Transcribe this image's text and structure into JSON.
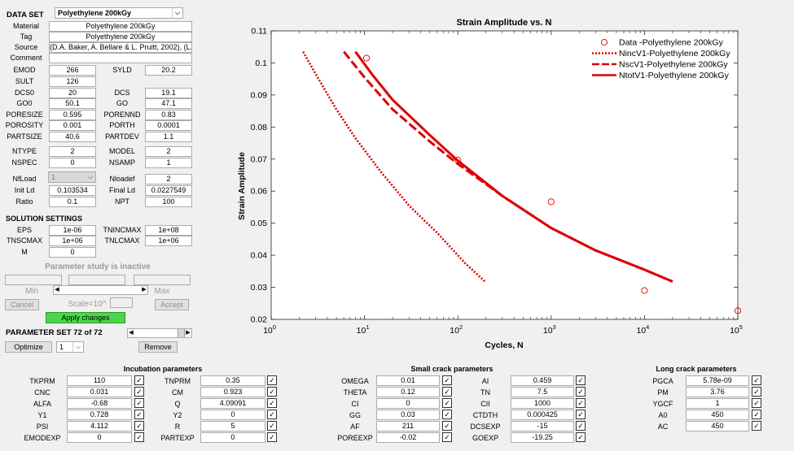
{
  "dataset": {
    "label": "DATA SET",
    "selected": "Polyethylene 200kGy",
    "material_label": "Material",
    "material": "Polyethylene 200kGy",
    "tag_label": "Tag",
    "tag": "Polyethylene 200kGy",
    "source_label": "Source",
    "source": "(D.A. Baker, A. Bellare & L. Pruitt, 2002), (L.",
    "comment_label": "Comment",
    "comment": ""
  },
  "props_left": [
    {
      "label": "EMOD",
      "value": "266"
    },
    {
      "label": "SULT",
      "value": "126"
    },
    {
      "label": "DCS0",
      "value": "20"
    },
    {
      "label": "GO0",
      "value": "50.1"
    },
    {
      "label": "PORESIZE",
      "value": "0.595"
    },
    {
      "label": "POROSITY",
      "value": "0.001"
    },
    {
      "label": "PARTSIZE",
      "value": "40.6"
    }
  ],
  "props_right": [
    {
      "label": "SYLD",
      "value": "20.2"
    },
    {
      "label": "DCS",
      "value": "19.1"
    },
    {
      "label": "GO",
      "value": "47.1"
    },
    {
      "label": "PORENND",
      "value": "0.83"
    },
    {
      "label": "PORTH",
      "value": "0.0001"
    },
    {
      "label": "PARTDEV",
      "value": "1.1"
    }
  ],
  "types": {
    "ntype_label": "NTYPE",
    "ntype": "2",
    "model_label": "MODEL",
    "model": "2",
    "nspec_label": "NSPEC",
    "nspec": "0",
    "nsamp_label": "NSAMP",
    "nsamp": "1"
  },
  "load": {
    "nfload_label": "NfLoad",
    "nfload": "1",
    "nloadef_label": "Nloadef",
    "nloadef": "2",
    "initld_label": "Init Ld",
    "initld": "0.103534",
    "finalld_label": "Final Ld",
    "finalld": "0.0227549",
    "ratio_label": "Ratio",
    "ratio": "0.1",
    "npt_label": "NPT",
    "npt": "100"
  },
  "solution": {
    "title": "SOLUTION SETTINGS",
    "eps_label": "EPS",
    "eps": "1e-06",
    "tnincmax_label": "TNINCMAX",
    "tnincmax": "1e+08",
    "tnscmax_label": "TNSCMAX",
    "tnscmax": "1e+06",
    "tnlcmax_label": "TNLCMAX",
    "tnlcmax": "1e+06",
    "m_label": "M",
    "m": "0"
  },
  "param_study": {
    "status": "Parameter study is inactive",
    "min_label": "Min",
    "max_label": "Max",
    "cancel": "Cancel",
    "scale": "Scale=10^",
    "accept": "Accept",
    "apply": "Apply changes"
  },
  "param_set": {
    "label": "PARAMETER SET 72 of 72",
    "optimize": "Optimize",
    "opt_value": "1",
    "remove": "Remove"
  },
  "incubation": {
    "title": "Incubation parameters",
    "left": [
      {
        "label": "TKPRM",
        "value": "110",
        "checked": true
      },
      {
        "label": "CNC",
        "value": "0.031",
        "checked": true
      },
      {
        "label": "ALFA",
        "value": "-0.68",
        "checked": true
      },
      {
        "label": "Y1",
        "value": "0.728",
        "checked": true
      },
      {
        "label": "PSI",
        "value": "4.112",
        "checked": true
      },
      {
        "label": "EMODEXP",
        "value": "0",
        "checked": true
      }
    ],
    "right": [
      {
        "label": "TNPRM",
        "value": "0.35",
        "checked": true
      },
      {
        "label": "CM",
        "value": "0.923",
        "checked": true
      },
      {
        "label": "Q",
        "value": "4.09091",
        "checked": true
      },
      {
        "label": "Y2",
        "value": "0",
        "checked": true
      },
      {
        "label": "R",
        "value": "5",
        "checked": true
      },
      {
        "label": "PARTEXP",
        "value": "0",
        "checked": true
      }
    ]
  },
  "small_crack": {
    "title": "Small crack parameters",
    "left": [
      {
        "label": "OMEGA",
        "value": "0.01",
        "checked": true
      },
      {
        "label": "THETA",
        "value": "0.12",
        "checked": true
      },
      {
        "label": "CI",
        "value": "0",
        "checked": true
      },
      {
        "label": "GG",
        "value": "0.03",
        "checked": true
      },
      {
        "label": "AF",
        "value": "211",
        "checked": true
      },
      {
        "label": "POREEXP",
        "value": "-0.02",
        "checked": true
      }
    ],
    "right": [
      {
        "label": "AI",
        "value": "0.459",
        "checked": true
      },
      {
        "label": "TN",
        "value": "7.5",
        "checked": true
      },
      {
        "label": "CII",
        "value": "1000",
        "checked": true
      },
      {
        "label": "CTDTH",
        "value": "0.000425",
        "checked": true
      },
      {
        "label": "DCSEXP",
        "value": "-15",
        "checked": true
      },
      {
        "label": "GOEXP",
        "value": "-19.25",
        "checked": true
      }
    ]
  },
  "long_crack": {
    "title": "Long crack parameters",
    "items": [
      {
        "label": "PGCA",
        "value": "5.78e-09",
        "checked": true
      },
      {
        "label": "PM",
        "value": "3.76",
        "checked": true
      },
      {
        "label": "YGCF",
        "value": "1",
        "checked": true
      },
      {
        "label": "A0",
        "value": "450",
        "checked": true
      },
      {
        "label": "AC",
        "value": "450",
        "checked": true
      }
    ]
  },
  "chart_data": {
    "type": "line",
    "title": "Strain Amplitude vs. N",
    "xlabel": "Cycles, N",
    "ylabel": "Strain Amplitude",
    "xscale": "log",
    "xlim": [
      1,
      100000
    ],
    "ylim": [
      0.02,
      0.11
    ],
    "xticks": [
      1,
      10,
      100,
      1000,
      10000,
      100000
    ],
    "xtick_labels": [
      {
        "base": "10",
        "exp": "0"
      },
      {
        "base": "10",
        "exp": "1"
      },
      {
        "base": "10",
        "exp": "2"
      },
      {
        "base": "10",
        "exp": "3"
      },
      {
        "base": "10",
        "exp": "4"
      },
      {
        "base": "10",
        "exp": "5"
      }
    ],
    "yticks": [
      0.02,
      0.03,
      0.04,
      0.05,
      0.06,
      0.07,
      0.08,
      0.09,
      0.1,
      0.11
    ],
    "ytick_labels": [
      "0.02",
      "0.03",
      "0.04",
      "0.05",
      "0.06",
      "0.07",
      "0.08",
      "0.09",
      "0.1",
      "0.11"
    ],
    "grid": false,
    "legend_position": "top-right",
    "color": "#dd0000",
    "series": [
      {
        "name": "Data -Polyethylene 200kGy",
        "style": "markers",
        "x": [
          10.5,
          100,
          1000,
          10000,
          100000
        ],
        "y": [
          0.1015,
          0.0697,
          0.0567,
          0.029,
          0.0227
        ]
      },
      {
        "name": "NincV1-Polyethylene 200kGy",
        "style": "dotted",
        "x": [
          2.2,
          3,
          5,
          8,
          15,
          30,
          60,
          120,
          200
        ],
        "y": [
          0.1035,
          0.0965,
          0.0855,
          0.0765,
          0.066,
          0.0555,
          0.047,
          0.0375,
          0.0315
        ]
      },
      {
        "name": "NscV1-Polyethylene 200kGy",
        "style": "dashed",
        "x": [
          6,
          10,
          20,
          50,
          100,
          300,
          1000,
          3000,
          10000,
          20000
        ],
        "y": [
          0.1035,
          0.0955,
          0.0855,
          0.0755,
          0.0685,
          0.0585,
          0.0485,
          0.0415,
          0.0355,
          0.0318
        ]
      },
      {
        "name": "NtotV1-Polyethylene 200kGy",
        "style": "solid",
        "x": [
          8,
          12,
          20,
          50,
          100,
          300,
          1000,
          3000,
          10000,
          20000
        ],
        "y": [
          0.1035,
          0.0965,
          0.0885,
          0.0775,
          0.0695,
          0.0585,
          0.0485,
          0.0415,
          0.0355,
          0.0318
        ]
      }
    ]
  }
}
